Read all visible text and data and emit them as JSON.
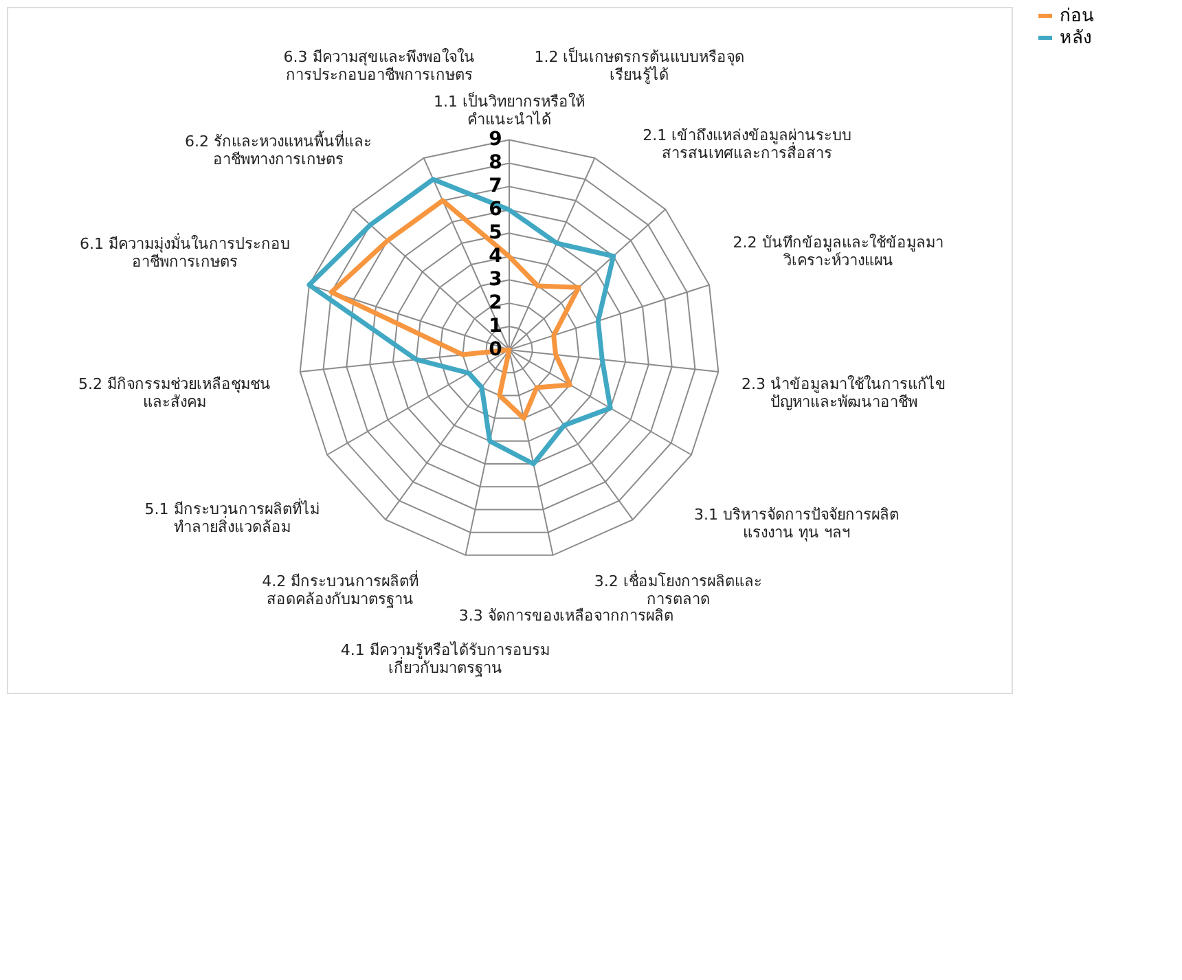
{
  "chart_data": {
    "type": "radar",
    "categories": [
      "1.1 เป็นวิทยากรหรือให้\nคำแนะนำได้",
      "1.2 เป็นเกษตรกรต้นแบบหรือจุด\nเรียนรู้ได้",
      "2.1 เข้าถึงแหล่งข้อมูลผ่านระบบ\nสารสนเทศและการสื่อสาร",
      "2.2 บันทึกข้อมูลและใช้ข้อมูลมา\nวิเคราะห์วางแผน",
      "2.3 นำข้อมูลมาใช้ในการแก้ไข\nปัญหาและพัฒนาอาชีพ",
      "3.1 บริหารจัดการปัจจัยการผลิต\nแรงงาน ทุน ฯลฯ",
      "3.2 เชื่อมโยงการผลิตและ\nการตลาด",
      "3.3 จัดการของเหลือจากการผลิต",
      "4.1 มีความรู้หรือได้รับการอบรม\nเกี่ยวกับมาตรฐาน",
      "4.2 มีกระบวนการผลิตที่\nสอดคล้องกับมาตรฐาน",
      "5.1 มีกระบวนการผลิตที่ไม่\nทำลายสิ่งแวดล้อม",
      "5.2 มีกิจกรรมช่วยเหลือชุมชน\nและสังคม",
      "6.1 มีความมุ่งมั่นในการประกอบ\nอาชีพการเกษตร",
      "6.2 รักและหวงแหนพื้นที่และ\nอาชีพทางการเกษตร",
      "6.3 มีความสุขและพึงพอใจใน\nการประกอบอาชีพการเกษตร"
    ],
    "series": [
      {
        "name": "ก่อน",
        "color": "#f7963f",
        "values": [
          4,
          3,
          4,
          2,
          2,
          3,
          2,
          3,
          2,
          0,
          0,
          2,
          8,
          7,
          7
        ]
      },
      {
        "name": "หลัง",
        "color": "#41a8c4",
        "values": [
          6,
          5,
          6,
          4,
          4,
          5,
          4,
          5,
          4,
          2,
          2,
          4,
          9,
          8,
          8
        ]
      }
    ],
    "ylim": [
      0,
      9
    ],
    "yticks": [
      0,
      1,
      2,
      3,
      4,
      5,
      6,
      7,
      8,
      9
    ],
    "grid": true,
    "legend": "right",
    "marker": "none",
    "line_style": "solid"
  }
}
